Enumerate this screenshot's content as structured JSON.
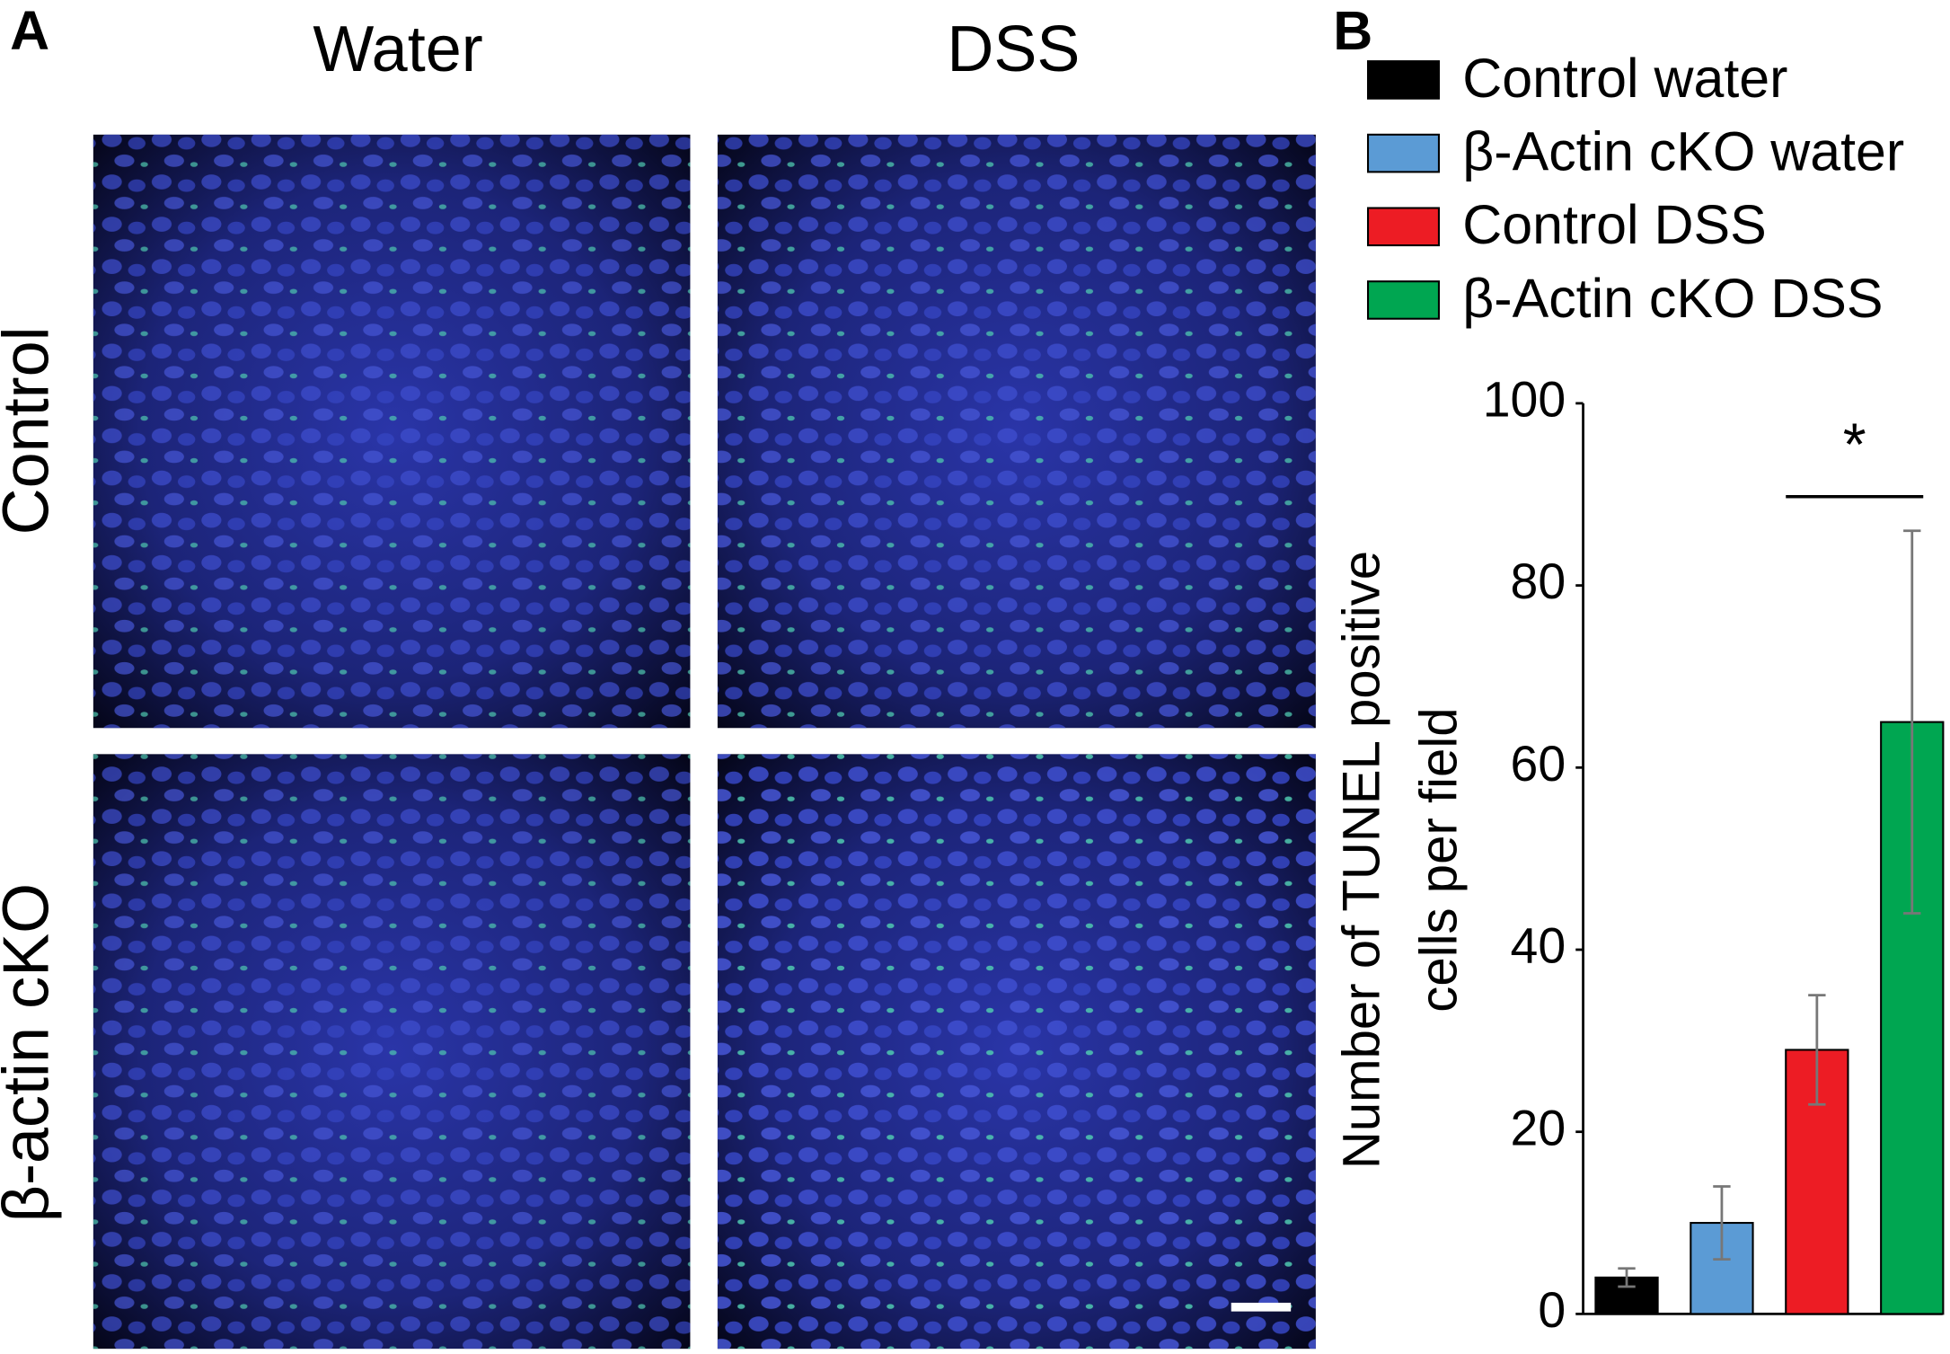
{
  "panel_a": {
    "label": "A",
    "columns": [
      "Water",
      "DSS"
    ],
    "rows": [
      "Control",
      "β-actin cKO"
    ]
  },
  "chart_data": {
    "type": "bar",
    "panel_label": "B",
    "ylabel": [
      "Number of TUNEL positive",
      "cells per field"
    ],
    "series": [
      {
        "name": "Control water",
        "color": "#000000",
        "values": [
          4
        ],
        "errors": [
          1
        ]
      },
      {
        "name": "β-Actin cKO water",
        "color": "#5b9bd5",
        "values": [
          10
        ],
        "errors": [
          4
        ]
      },
      {
        "name": "Control  DSS",
        "color": "#ed1c24",
        "values": [
          29
        ],
        "errors": [
          6
        ]
      },
      {
        "name": "β-Actin cKO  DSS",
        "color": "#00a651",
        "values": [
          65
        ],
        "errors": [
          21
        ]
      }
    ],
    "ylim": [
      0,
      100
    ],
    "yticks": [
      0,
      20,
      40,
      60,
      80,
      100
    ],
    "annotations": [
      {
        "text": "*",
        "from": 2,
        "to": 3
      }
    ]
  }
}
